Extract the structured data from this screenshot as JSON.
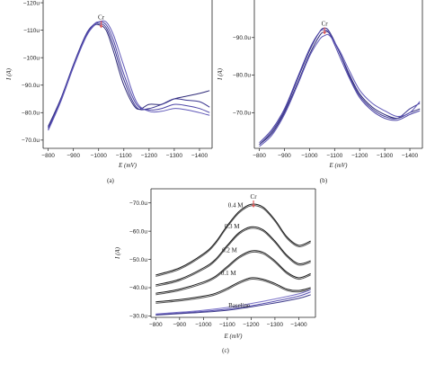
{
  "chart_data": [
    {
      "panel": "(a)",
      "type": "line",
      "xlabel": "E (mV)",
      "ylabel": "I (A)",
      "xlim": [
        -780,
        -1450
      ],
      "ylim": [
        -67,
        -121
      ],
      "xticks": [
        "−800",
        "−900",
        "−1000",
        "−1100",
        "−1200",
        "−1300",
        "−1400"
      ],
      "yticks": [
        "−70.0u",
        "−80.0u",
        "−90.0u",
        "−100u",
        "−110u",
        "−120u"
      ],
      "annotations": [
        {
          "text": "Cr",
          "x": -1010,
          "y": -114
        }
      ],
      "series": [
        {
          "color": "#2e2a78",
          "x": [
            -800,
            -850,
            -900,
            -950,
            -980,
            -1000,
            -1030,
            -1060,
            -1100,
            -1150,
            -1200,
            -1250,
            -1300,
            -1350,
            -1400,
            -1440
          ],
          "y": [
            -75,
            -85,
            -97,
            -108,
            -111.5,
            -112,
            -110,
            -102,
            -90,
            -81.5,
            -83,
            -83,
            -85,
            -86,
            -87,
            -88
          ]
        },
        {
          "color": "#3b3690",
          "x": [
            -800,
            -850,
            -900,
            -950,
            -980,
            -1000,
            -1030,
            -1060,
            -1100,
            -1150,
            -1200,
            -1250,
            -1300,
            -1350,
            -1400,
            -1440
          ],
          "y": [
            -74.5,
            -85,
            -97.5,
            -108.5,
            -112,
            -112.5,
            -111,
            -104,
            -92,
            -82,
            -81.5,
            -83,
            -85,
            -84.5,
            -84,
            -82
          ]
        },
        {
          "color": "#4c44a6",
          "x": [
            -800,
            -850,
            -900,
            -950,
            -980,
            -1000,
            -1030,
            -1060,
            -1100,
            -1150,
            -1200,
            -1250,
            -1300,
            -1350,
            -1400,
            -1440
          ],
          "y": [
            -74,
            -84.5,
            -97,
            -108,
            -112,
            -113,
            -112,
            -106,
            -94,
            -83,
            -81,
            -81.5,
            -83,
            -82.5,
            -81.5,
            -80
          ]
        },
        {
          "color": "#6058b8",
          "x": [
            -800,
            -850,
            -900,
            -950,
            -980,
            -1000,
            -1030,
            -1060,
            -1100,
            -1150,
            -1200,
            -1250,
            -1300,
            -1350,
            -1400,
            -1440
          ],
          "y": [
            -73.5,
            -84,
            -96.5,
            -107.5,
            -111.5,
            -113,
            -113,
            -108,
            -97,
            -84,
            -80.5,
            -80.5,
            -81.5,
            -81,
            -80,
            -79
          ]
        }
      ]
    },
    {
      "panel": "(b)",
      "type": "line",
      "xlabel": "E (mV)",
      "ylabel": "I (A)",
      "xlim": [
        -780,
        -1450
      ],
      "ylim": [
        -60.5,
        -100
      ],
      "xticks": [
        "−800",
        "−900",
        "−1000",
        "−1100",
        "−1200",
        "−1300",
        "−1400"
      ],
      "yticks": [
        "−60.0u",
        "−70.0u",
        "−80.0u",
        "−90.0u"
      ],
      "annotations": [
        {
          "text": "Cr",
          "x": -1060,
          "y": -93.2
        }
      ],
      "series": [
        {
          "color": "#2e2a78",
          "x": [
            -800,
            -850,
            -900,
            -950,
            -1000,
            -1040,
            -1060,
            -1080,
            -1120,
            -1160,
            -1200,
            -1250,
            -1300,
            -1350,
            -1400,
            -1440
          ],
          "y": [
            -61.5,
            -64.5,
            -70,
            -77.5,
            -85.5,
            -90.5,
            -91.5,
            -91,
            -86,
            -80,
            -75,
            -71.5,
            -69.5,
            -68.5,
            -70,
            -71
          ]
        },
        {
          "color": "#3b3690",
          "x": [
            -800,
            -850,
            -900,
            -950,
            -1000,
            -1040,
            -1060,
            -1080,
            -1120,
            -1160,
            -1200,
            -1250,
            -1300,
            -1350,
            -1400,
            -1440
          ],
          "y": [
            -61.5,
            -65,
            -70.5,
            -78.5,
            -86.5,
            -91.5,
            -92.5,
            -91.5,
            -86,
            -79.5,
            -74.5,
            -71,
            -69,
            -68.5,
            -71,
            -72.5
          ]
        },
        {
          "color": "#4c44a6",
          "x": [
            -800,
            -850,
            -900,
            -950,
            -1000,
            -1040,
            -1060,
            -1080,
            -1120,
            -1160,
            -1200,
            -1250,
            -1300,
            -1350,
            -1400,
            -1440
          ],
          "y": [
            -62,
            -65.5,
            -71,
            -79,
            -87,
            -91.5,
            -92,
            -91,
            -85,
            -79,
            -74,
            -70.5,
            -68.5,
            -68,
            -69.5,
            -70.5
          ]
        },
        {
          "color": "#6058b8",
          "x": [
            -800,
            -850,
            -900,
            -950,
            -1000,
            -1040,
            -1060,
            -1080,
            -1120,
            -1160,
            -1200,
            -1250,
            -1300,
            -1350,
            -1400,
            -1440
          ],
          "y": [
            -61,
            -64,
            -69.5,
            -77,
            -85,
            -89.5,
            -90.5,
            -90.5,
            -86.5,
            -81,
            -76,
            -72.5,
            -70.5,
            -69,
            -70,
            -73
          ]
        }
      ]
    },
    {
      "panel": "(c)",
      "type": "line",
      "xlabel": "E (mV)",
      "ylabel": "I (A)",
      "xlim": [
        -780,
        -1470
      ],
      "ylim": [
        -29.5,
        -75
      ],
      "xticks": [
        "−800",
        "−900",
        "−1000",
        "−1100",
        "−1200",
        "−1300",
        "−1400"
      ],
      "yticks": [
        "−30.0u",
        "−40.0u",
        "−50.0u",
        "−60.0u",
        "−70.0u"
      ],
      "annotations": [
        {
          "text": "Cr",
          "x": -1210,
          "y": -71.5
        },
        {
          "text": "0.4 M",
          "x": -1135,
          "y": -68.5
        },
        {
          "text": "0.3 M",
          "x": -1120,
          "y": -61
        },
        {
          "text": "0.2 M",
          "x": -1110,
          "y": -52.5
        },
        {
          "text": "0.1 M",
          "x": -1105,
          "y": -44.5
        },
        {
          "text": "Baseline",
          "x": -1150,
          "y": -33
        }
      ],
      "series": [
        {
          "name": "0.4 M",
          "color": "#1a1a1a",
          "x": [
            -800,
            -900,
            -1000,
            -1050,
            -1100,
            -1150,
            -1200,
            -1250,
            -1300,
            -1350,
            -1400,
            -1450
          ],
          "y": [
            -44.5,
            -47,
            -52,
            -56,
            -62,
            -67,
            -69.5,
            -68.5,
            -64,
            -58,
            -55,
            -56.5
          ]
        },
        {
          "name": "0.4 M",
          "color": "#555555",
          "x": [
            -800,
            -900,
            -1000,
            -1050,
            -1100,
            -1150,
            -1200,
            -1250,
            -1300,
            -1350,
            -1400,
            -1450
          ],
          "y": [
            -44,
            -46.5,
            -51.5,
            -55.5,
            -61.5,
            -66.5,
            -69,
            -68,
            -63.5,
            -57.5,
            -54.5,
            -56
          ]
        },
        {
          "name": "0.3 M",
          "color": "#1a1a1a",
          "x": [
            -800,
            -900,
            -1000,
            -1050,
            -1100,
            -1150,
            -1200,
            -1250,
            -1300,
            -1350,
            -1400,
            -1450
          ],
          "y": [
            -41,
            -43,
            -47,
            -50,
            -55,
            -59.5,
            -61.5,
            -60.5,
            -56.5,
            -51.5,
            -48.5,
            -49.5
          ]
        },
        {
          "name": "0.3 M",
          "color": "#555555",
          "x": [
            -800,
            -900,
            -1000,
            -1050,
            -1100,
            -1150,
            -1200,
            -1250,
            -1300,
            -1350,
            -1400,
            -1450
          ],
          "y": [
            -40.5,
            -42.5,
            -46.5,
            -49.5,
            -54.5,
            -59,
            -61,
            -60,
            -56,
            -51,
            -48,
            -49
          ]
        },
        {
          "name": "0.2 M",
          "color": "#1a1a1a",
          "x": [
            -800,
            -900,
            -1000,
            -1050,
            -1100,
            -1150,
            -1200,
            -1250,
            -1300,
            -1350,
            -1400,
            -1450
          ],
          "y": [
            -38,
            -39.5,
            -42,
            -44,
            -47.5,
            -51,
            -53,
            -52.5,
            -49.5,
            -45.5,
            -43.5,
            -45
          ]
        },
        {
          "name": "0.2 M",
          "color": "#555555",
          "x": [
            -800,
            -900,
            -1000,
            -1050,
            -1100,
            -1150,
            -1200,
            -1250,
            -1300,
            -1350,
            -1400,
            -1450
          ],
          "y": [
            -37.5,
            -39,
            -41.5,
            -43.5,
            -47,
            -50.5,
            -52.5,
            -52,
            -49,
            -45,
            -43,
            -44.5
          ]
        },
        {
          "name": "0.1 M",
          "color": "#1a1a1a",
          "x": [
            -800,
            -900,
            -1000,
            -1050,
            -1100,
            -1150,
            -1200,
            -1250,
            -1300,
            -1350,
            -1400,
            -1450
          ],
          "y": [
            -35,
            -35.8,
            -37,
            -38,
            -39.8,
            -42,
            -43.5,
            -43,
            -41.5,
            -39.5,
            -39,
            -40
          ]
        },
        {
          "name": "0.1 M",
          "color": "#555555",
          "x": [
            -800,
            -900,
            -1000,
            -1050,
            -1100,
            -1150,
            -1200,
            -1250,
            -1300,
            -1350,
            -1400,
            -1450
          ],
          "y": [
            -34.5,
            -35.3,
            -36.5,
            -37.5,
            -39.3,
            -41.5,
            -43,
            -42.5,
            -41,
            -39,
            -38.5,
            -39.5
          ]
        },
        {
          "name": "Baseline",
          "color": "#5a52b0",
          "x": [
            -800,
            -900,
            -1000,
            -1100,
            -1200,
            -1300,
            -1400,
            -1450
          ],
          "y": [
            -30.5,
            -31,
            -31.6,
            -32.4,
            -33.6,
            -35.2,
            -37,
            -38.5
          ]
        },
        {
          "name": "Baseline",
          "color": "#3d3a8a",
          "x": [
            -800,
            -900,
            -1000,
            -1100,
            -1200,
            -1300,
            -1400,
            -1450
          ],
          "y": [
            -30.3,
            -30.8,
            -31.3,
            -32,
            -33.2,
            -34.6,
            -36.2,
            -37.5
          ]
        },
        {
          "name": "Baseline",
          "color": "#7a72c8",
          "x": [
            -800,
            -900,
            -1000,
            -1100,
            -1200,
            -1300,
            -1400,
            -1450
          ],
          "y": [
            -30.7,
            -31.3,
            -32,
            -33,
            -34.4,
            -36,
            -37.8,
            -39.3
          ]
        }
      ]
    }
  ],
  "marker_color": "#e05a5a"
}
